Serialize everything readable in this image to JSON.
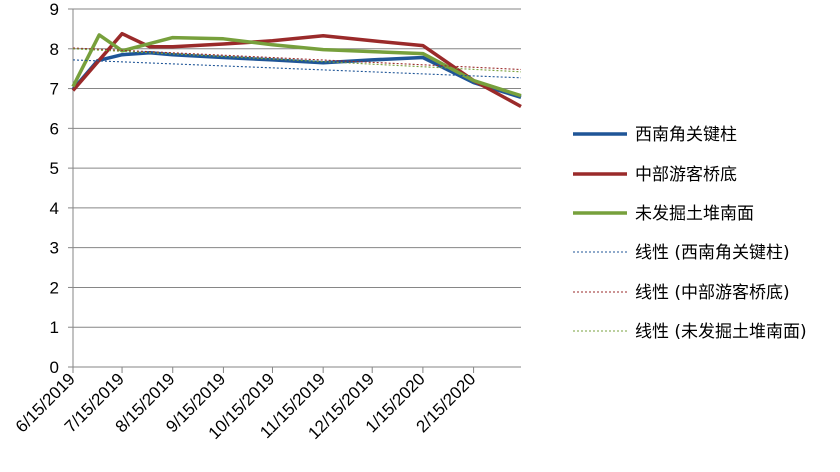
{
  "chart_data": {
    "type": "line",
    "title": "",
    "xlabel": "",
    "ylabel": "",
    "ylim": [
      0,
      9
    ],
    "yticks": [
      "0",
      "1",
      "2",
      "3",
      "4",
      "5",
      "6",
      "7",
      "8",
      "9"
    ],
    "xlim": [
      "2019-06-15",
      "2020-03-15"
    ],
    "xticks": [
      "6/15/2019",
      "7/15/2019",
      "8/15/2019",
      "9/15/2019",
      "10/15/2019",
      "11/15/2019",
      "12/15/2019",
      "1/15/2020",
      "2/15/2020"
    ],
    "grid": "horizontal",
    "legend_position": "right",
    "series": [
      {
        "name": "西南角关键柱",
        "color": "#1f5597",
        "style": "solid",
        "points": [
          [
            "2019-06-15",
            6.98
          ],
          [
            "2019-06-30",
            7.7
          ],
          [
            "2019-07-15",
            7.85
          ],
          [
            "2019-08-01",
            7.9
          ],
          [
            "2019-08-15",
            7.85
          ],
          [
            "2019-09-15",
            7.78
          ],
          [
            "2019-10-15",
            7.72
          ],
          [
            "2019-11-15",
            7.65
          ],
          [
            "2019-12-15",
            7.72
          ],
          [
            "2020-01-15",
            7.78
          ],
          [
            "2020-02-15",
            7.15
          ],
          [
            "2020-03-15",
            6.78
          ]
        ]
      },
      {
        "name": "中部游客桥底",
        "color": "#9a2a2a",
        "style": "solid",
        "points": [
          [
            "2019-06-15",
            6.95
          ],
          [
            "2019-07-15",
            8.38
          ],
          [
            "2019-08-01",
            8.05
          ],
          [
            "2019-08-15",
            8.05
          ],
          [
            "2019-09-15",
            8.12
          ],
          [
            "2019-10-15",
            8.2
          ],
          [
            "2019-11-15",
            8.33
          ],
          [
            "2019-12-15",
            8.2
          ],
          [
            "2020-01-15",
            8.08
          ],
          [
            "2020-02-15",
            7.2
          ],
          [
            "2020-03-15",
            6.55
          ]
        ]
      },
      {
        "name": "未发掘土堆南面",
        "color": "#77a03c",
        "style": "solid",
        "points": [
          [
            "2019-06-15",
            7.05
          ],
          [
            "2019-07-01",
            8.35
          ],
          [
            "2019-07-15",
            7.95
          ],
          [
            "2019-08-15",
            8.28
          ],
          [
            "2019-09-15",
            8.25
          ],
          [
            "2019-10-15",
            8.1
          ],
          [
            "2019-11-15",
            7.98
          ],
          [
            "2019-12-15",
            7.93
          ],
          [
            "2020-01-15",
            7.88
          ],
          [
            "2020-02-15",
            7.2
          ],
          [
            "2020-03-15",
            6.82
          ]
        ]
      },
      {
        "name": "线性 (西南角关键柱)",
        "color": "#1f5597",
        "style": "dotted",
        "points": [
          [
            "2019-06-15",
            7.72
          ],
          [
            "2020-03-15",
            7.27
          ]
        ]
      },
      {
        "name": "线性 (中部游客桥底)",
        "color": "#9a2a2a",
        "style": "dotted",
        "points": [
          [
            "2019-06-15",
            8.02
          ],
          [
            "2020-03-15",
            7.48
          ]
        ]
      },
      {
        "name": "线性 (未发掘土堆南面)",
        "color": "#77a03c",
        "style": "dotted",
        "points": [
          [
            "2019-06-15",
            8.0
          ],
          [
            "2020-03-15",
            7.42
          ]
        ]
      }
    ]
  }
}
